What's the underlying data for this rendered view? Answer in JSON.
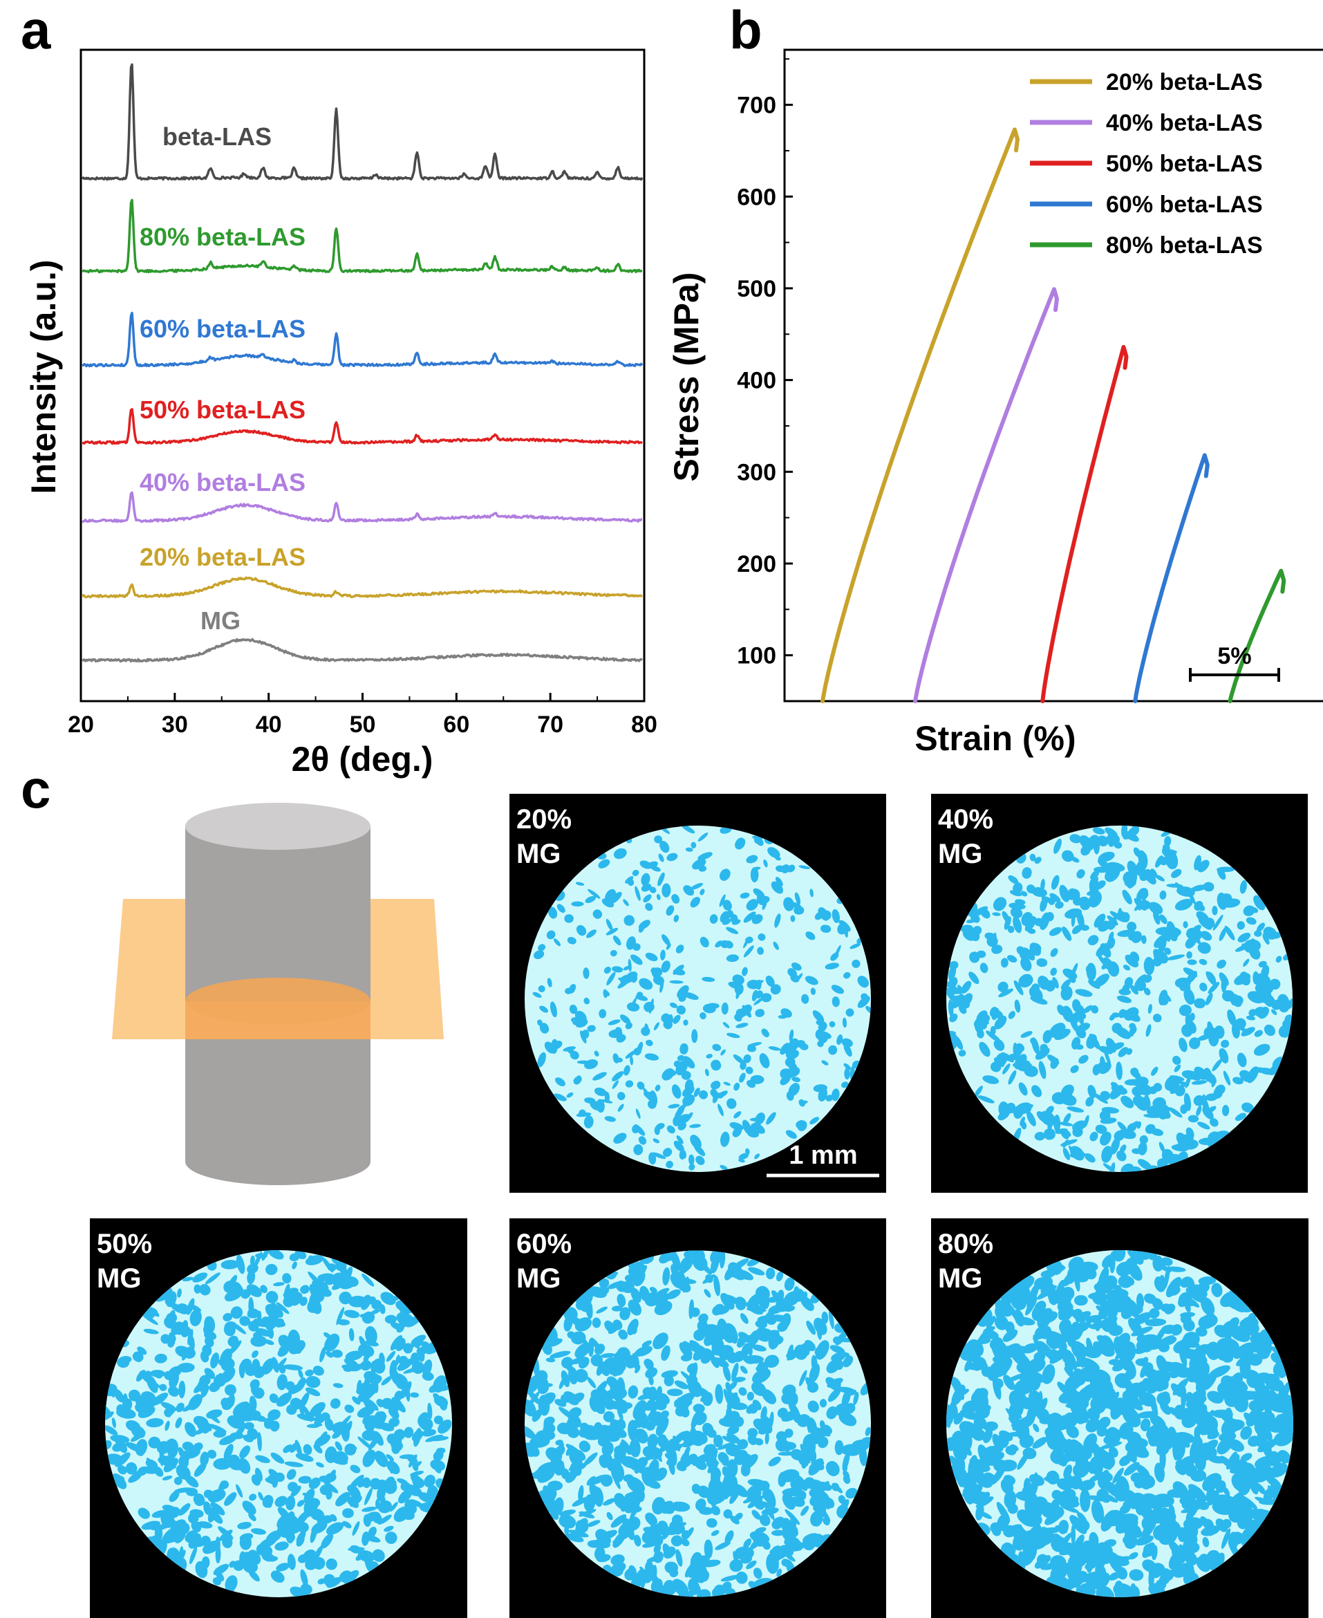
{
  "panels": {
    "a": "a",
    "b": "b",
    "c": "c"
  },
  "chart_data": [
    {
      "type": "line",
      "panel": "a",
      "xlabel": "2θ (deg.)",
      "ylabel": "Intensity (a.u.)",
      "xlim": [
        20,
        80
      ],
      "xticks": [
        "20",
        "30",
        "40",
        "50",
        "60",
        "70",
        "80"
      ],
      "series": [
        {
          "name": "beta-LAS",
          "color": "#4a4a4a",
          "peak_scale": 1.0,
          "hump": 0.04,
          "peaks": [
            [
              25.4,
              170
            ],
            [
              33.8,
              14
            ],
            [
              37.4,
              6
            ],
            [
              39.4,
              14
            ],
            [
              42.7,
              14
            ],
            [
              47.2,
              100
            ],
            [
              51.4,
              6
            ],
            [
              55.8,
              38
            ],
            [
              60.8,
              6
            ],
            [
              63.1,
              18
            ],
            [
              64.1,
              34
            ],
            [
              70.2,
              10
            ],
            [
              71.5,
              10
            ],
            [
              75.0,
              8
            ],
            [
              77.2,
              16
            ]
          ]
        },
        {
          "name": "80% beta-LAS",
          "color": "#2e9a2e",
          "peak_scale": 0.62,
          "hump": 0.25,
          "peaks": [
            [
              25.4,
              170
            ],
            [
              33.8,
              14
            ],
            [
              39.4,
              12
            ],
            [
              42.7,
              10
            ],
            [
              47.2,
              100
            ],
            [
              55.8,
              38
            ],
            [
              63.1,
              16
            ],
            [
              64.1,
              30
            ],
            [
              70.2,
              8
            ],
            [
              71.5,
              8
            ],
            [
              75.0,
              8
            ],
            [
              77.2,
              14
            ]
          ]
        },
        {
          "name": "60% beta-LAS",
          "color": "#2f78d2",
          "peak_scale": 0.45,
          "hump": 0.45,
          "peaks": [
            [
              25.4,
              170
            ],
            [
              33.8,
              10
            ],
            [
              39.4,
              8
            ],
            [
              42.7,
              8
            ],
            [
              47.2,
              100
            ],
            [
              55.8,
              36
            ],
            [
              64.1,
              28
            ],
            [
              70.2,
              6
            ],
            [
              77.2,
              10
            ]
          ]
        },
        {
          "name": "50% beta-LAS",
          "color": "#e02020",
          "peak_scale": 0.3,
          "hump": 0.55,
          "peaks": [
            [
              25.4,
              170
            ],
            [
              47.2,
              100
            ],
            [
              55.8,
              30
            ],
            [
              64.1,
              24
            ]
          ]
        },
        {
          "name": "40% beta-LAS",
          "color": "#b07ee0",
          "peak_scale": 0.25,
          "hump": 0.75,
          "peaks": [
            [
              25.4,
              170
            ],
            [
              47.2,
              100
            ],
            [
              55.8,
              30
            ],
            [
              64.1,
              20
            ]
          ]
        },
        {
          "name": "20% beta-LAS",
          "color": "#c8a22a",
          "peak_scale": 0.1,
          "hump": 0.85,
          "peaks": [
            [
              25.4,
              170
            ],
            [
              47.2,
              60
            ]
          ]
        },
        {
          "name": "MG",
          "color": "#7f7f7f",
          "peak_scale": 0.0,
          "hump": 1.0,
          "peaks": []
        }
      ]
    },
    {
      "type": "line",
      "panel": "b",
      "xlabel": "Strain (%)",
      "ylabel": "Stress (MPa)",
      "ylim": [
        50,
        760
      ],
      "yticks": [
        100,
        200,
        300,
        400,
        500,
        600,
        700
      ],
      "x_offset_note": "curves shifted horizontally",
      "scalebar": "5%",
      "legend": "top-right",
      "series": [
        {
          "name": "20% beta-LAS",
          "color": "#c8a22a",
          "start": 0.0,
          "peak": 673,
          "span": 8.3
        },
        {
          "name": "40% beta-LAS",
          "color": "#b07ee0",
          "start": 4.0,
          "peak": 499,
          "span": 6.0
        },
        {
          "name": "50% beta-LAS",
          "color": "#e02020",
          "start": 9.5,
          "peak": 436,
          "span": 3.5
        },
        {
          "name": "60% beta-LAS",
          "color": "#2f78d2",
          "start": 13.5,
          "peak": 318,
          "span": 3.0
        },
        {
          "name": "80% beta-LAS",
          "color": "#2e9a2e",
          "start": 17.6,
          "peak": 192,
          "span": 2.2
        }
      ]
    }
  ],
  "micrographs": [
    {
      "line1": "20%",
      "line2": "MG",
      "fraction": 0.2
    },
    {
      "line1": "40%",
      "line2": "MG",
      "fraction": 0.4
    },
    {
      "line1": "50%",
      "line2": "MG",
      "fraction": 0.5
    },
    {
      "line1": "60%",
      "line2": "MG",
      "fraction": 0.6
    },
    {
      "line1": "80%",
      "line2": "MG",
      "fraction": 0.8
    }
  ],
  "scale_bar": "1 mm",
  "colors": {
    "matrix": "#cdf8fb",
    "phase": "#2cb8ec",
    "cylinder_top": "#cfcdcd",
    "cylinder_side": "#a5a2a2",
    "plane": "#fcc680"
  }
}
